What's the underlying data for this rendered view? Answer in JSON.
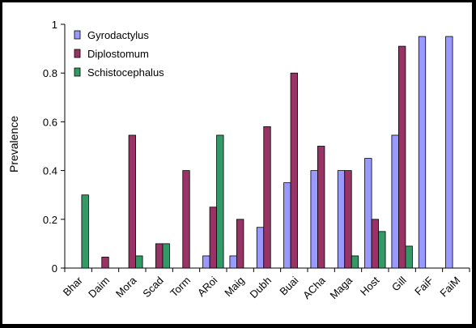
{
  "chart_data": {
    "type": "bar",
    "title": "",
    "xlabel": "",
    "ylabel": "Prevalence",
    "ylim": [
      0,
      1
    ],
    "yticks": [
      "0",
      "0.2",
      "0.4",
      "0.6",
      "0.8",
      "1"
    ],
    "grid": false,
    "legend_position": "top-left",
    "categories": [
      "Bhar",
      "Daim",
      "Mora",
      "Scad",
      "Torm",
      "ARoi",
      "Maig",
      "Dubh",
      "Buai",
      "ACha",
      "Maga",
      "Host",
      "Gill",
      "FaiF",
      "FaiM"
    ],
    "series": [
      {
        "name": "Gyrodactylus",
        "color": "#9999ff",
        "values": [
          0,
          0,
          0,
          0,
          0,
          0.05,
          0.05,
          0.167,
          0.35,
          0.4,
          0.4,
          0.45,
          0.545,
          0.95,
          0.95
        ]
      },
      {
        "name": "Diplostomum",
        "color": "#993366",
        "values": [
          0,
          0.045,
          0.545,
          0.1,
          0.4,
          0.25,
          0.2,
          0.58,
          0.8,
          0.5,
          0.4,
          0.2,
          0.91,
          0,
          0
        ]
      },
      {
        "name": "Schistocephalus",
        "color": "#339966",
        "values": [
          0.3,
          0,
          0.05,
          0.1,
          0,
          0.545,
          0,
          0,
          0,
          0,
          0.05,
          0.15,
          0.09,
          0,
          0
        ]
      }
    ]
  }
}
